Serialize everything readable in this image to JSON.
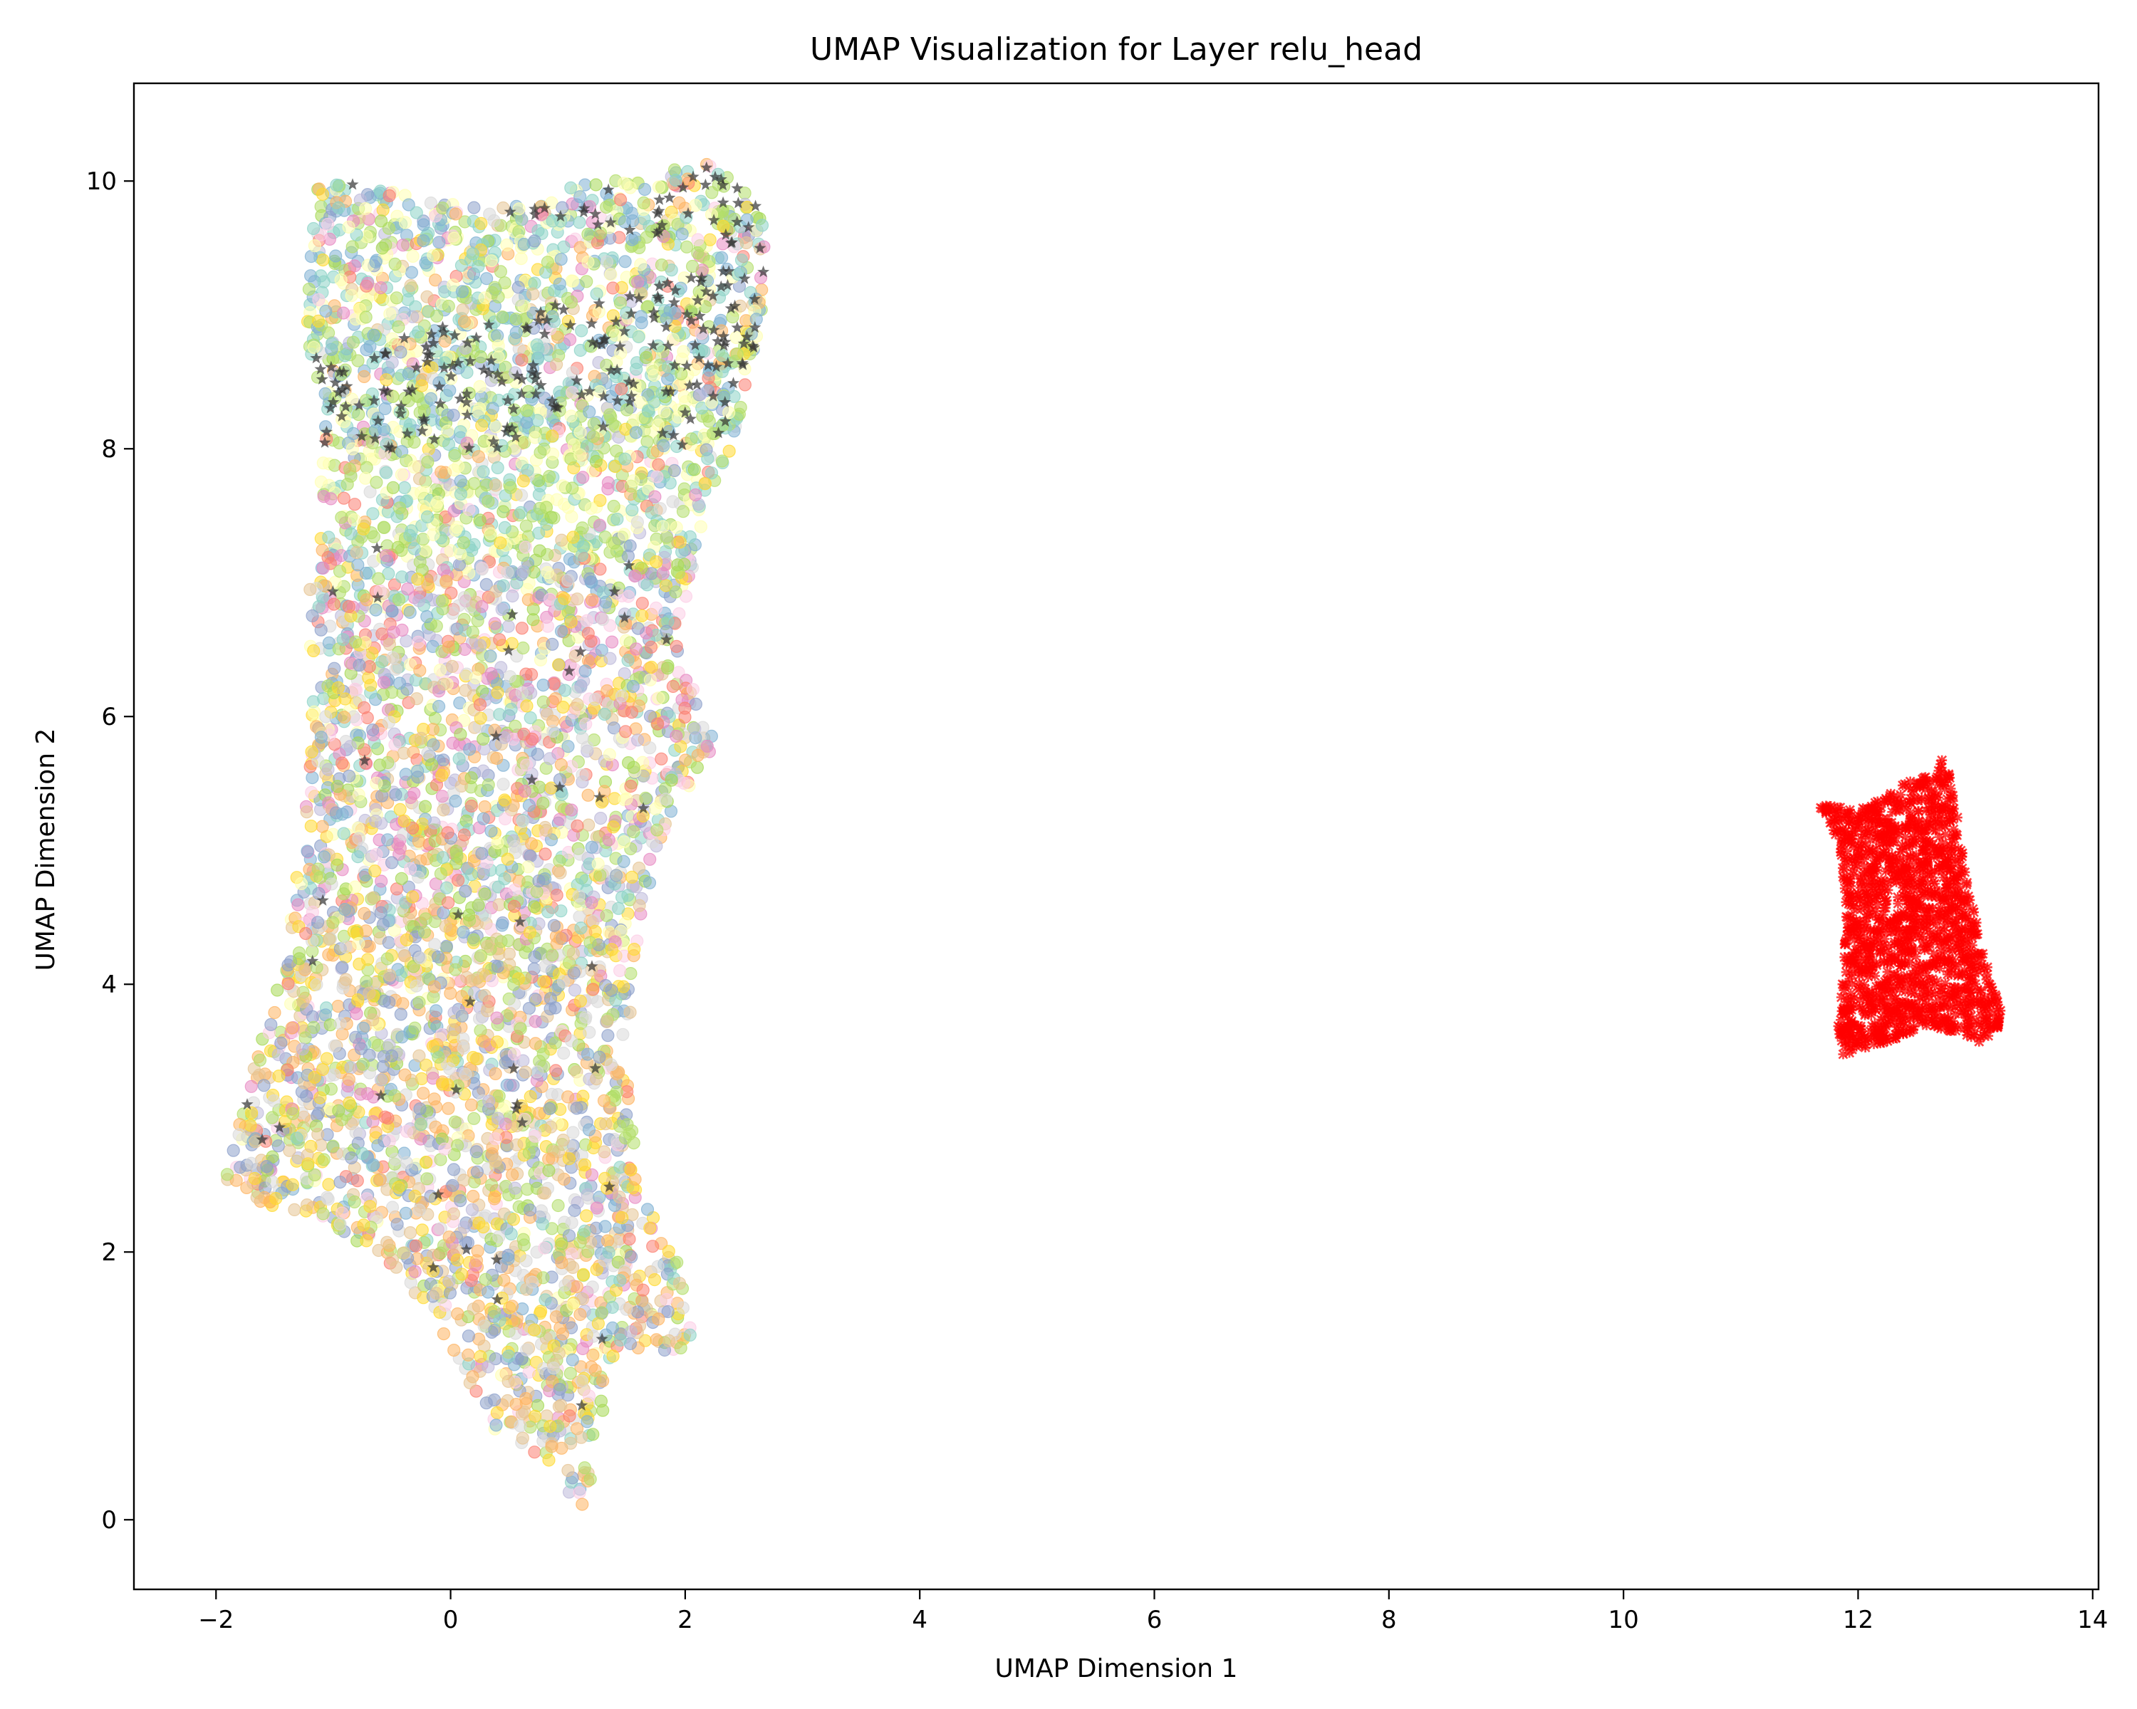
{
  "chart_data": {
    "type": "scatter",
    "title": "UMAP Visualization for Layer relu_head",
    "xlabel": "UMAP Dimension 1",
    "ylabel": "UMAP Dimension 2",
    "xlim": [
      -2.7,
      14.05
    ],
    "ylim": [
      -0.52,
      10.73
    ],
    "xticks": [
      -2,
      0,
      2,
      4,
      6,
      8,
      10,
      12,
      14
    ],
    "yticks": [
      0,
      2,
      4,
      6,
      8,
      10
    ],
    "xtick_labels": [
      "−2",
      "0",
      "2",
      "4",
      "6",
      "8",
      "10",
      "12",
      "14"
    ],
    "ytick_labels": [
      "0",
      "2",
      "4",
      "6",
      "8",
      "10"
    ],
    "grid": false,
    "legend": "none",
    "clusters": [
      {
        "marker": "circle",
        "colors": [
          "#8dd3c7",
          "#ffffb3",
          "#bebada",
          "#fb8072",
          "#80b1d3",
          "#fdb462",
          "#b3de69",
          "#fccde5",
          "#d9d9d9",
          "#ffd92f",
          "#e5c494",
          "#a6d854",
          "#8da0cb",
          "#e78ac3"
        ],
        "outline": [
          [
            -1.15,
            9.95
          ],
          [
            -0.9,
            10.0
          ],
          [
            0.3,
            9.8
          ],
          [
            0.9,
            9.85
          ],
          [
            1.0,
            9.95
          ],
          [
            2.3,
            10.15
          ],
          [
            2.7,
            9.7
          ],
          [
            2.65,
            8.8
          ],
          [
            2.3,
            7.7
          ],
          [
            1.9,
            6.6
          ],
          [
            2.25,
            5.8
          ],
          [
            1.85,
            5.2
          ],
          [
            1.6,
            4.4
          ],
          [
            1.5,
            3.5
          ],
          [
            1.6,
            2.5
          ],
          [
            1.95,
            1.9
          ],
          [
            2.1,
            1.3
          ],
          [
            1.4,
            1.2
          ],
          [
            1.25,
            0.6
          ],
          [
            1.15,
            0.0
          ],
          [
            0.85,
            0.4
          ],
          [
            0.3,
            0.7
          ],
          [
            0.0,
            1.3
          ],
          [
            -0.5,
            1.9
          ],
          [
            -1.0,
            2.2
          ],
          [
            -1.95,
            2.45
          ],
          [
            -1.75,
            3.2
          ],
          [
            -1.4,
            4.2
          ],
          [
            -1.2,
            5.6
          ],
          [
            -1.2,
            7.0
          ],
          [
            -1.05,
            8.3
          ],
          [
            -1.25,
            8.7
          ]
        ],
        "bands": [
          {
            "y_range": [
              8.1,
              10.2
            ],
            "colors": [
              "#8dd3c7",
              "#80b1d3",
              "#ffffb3",
              "#b3de69"
            ],
            "label": ""
          },
          {
            "y_range": [
              7.2,
              8.4
            ],
            "colors": [
              "#ffffb3",
              "#8dd3c7",
              "#b3de69"
            ],
            "label": ""
          },
          {
            "y_range": [
              0.0,
              4.5
            ],
            "colors": [
              "#d9d9d9",
              "#b3de69",
              "#e5c494",
              "#ffd92f",
              "#8da0cb",
              "#fdb462"
            ],
            "label": ""
          }
        ]
      },
      {
        "marker": "star",
        "color": "#333333",
        "y_range": [
          8.0,
          10.2
        ],
        "x_range": [
          -1.0,
          2.9
        ],
        "count": 420
      },
      {
        "marker": "cross",
        "color": "#ff0000",
        "outline": [
          [
            11.65,
            5.35
          ],
          [
            12.0,
            5.3
          ],
          [
            12.4,
            5.5
          ],
          [
            12.6,
            5.6
          ],
          [
            12.75,
            5.7
          ],
          [
            12.85,
            5.25
          ],
          [
            12.95,
            4.7
          ],
          [
            13.05,
            4.3
          ],
          [
            13.25,
            3.7
          ],
          [
            13.1,
            3.55
          ],
          [
            12.6,
            3.7
          ],
          [
            12.2,
            3.55
          ],
          [
            11.8,
            3.45
          ],
          [
            11.85,
            3.9
          ],
          [
            11.9,
            4.5
          ],
          [
            11.85,
            5.0
          ]
        ],
        "count": 1500
      }
    ]
  }
}
